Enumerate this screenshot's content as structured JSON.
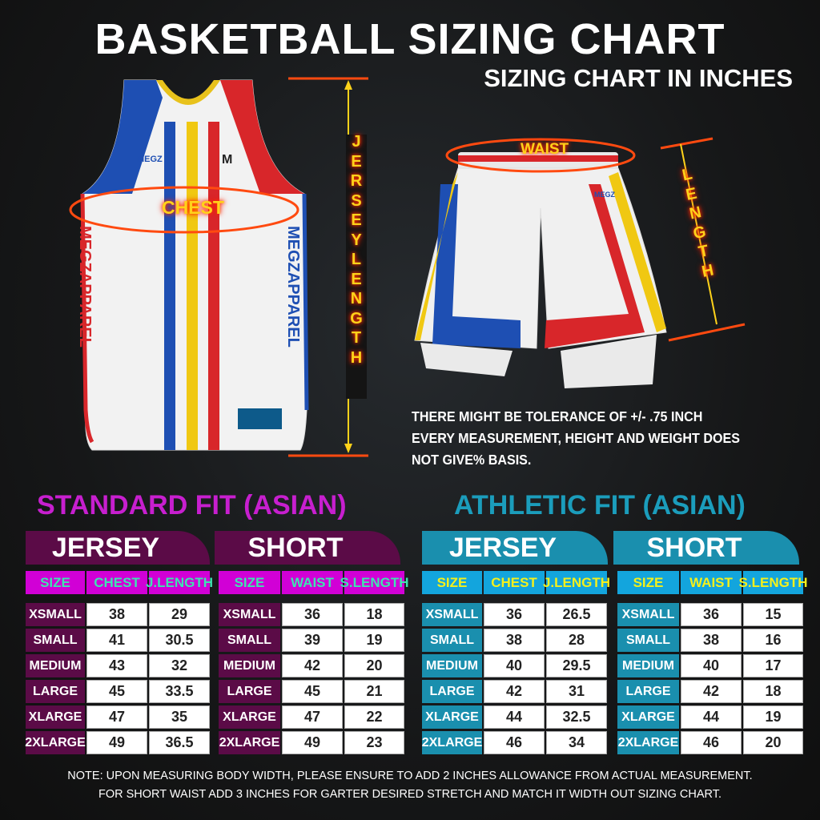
{
  "header": {
    "title": "BASKETBALL SIZING CHART",
    "subtitle": "SIZING CHART IN INCHES"
  },
  "brand": {
    "logo_text": "MEGZ",
    "jersey_side_text": "MEGZAPPAREL"
  },
  "jersey_graphic": {
    "chest_label": "CHEST",
    "length_label": "JERSEY LENGTH"
  },
  "shorts_graphic": {
    "waist_label": "WAIST",
    "length_label": "LENGTH"
  },
  "tolerance_note": [
    "THERE MIGHT BE TOLERANCE OF +/- .75 INCH",
    "EVERY MEASUREMENT, HEIGHT AND WEIGHT DOES",
    "NOT GIVE% BASIS."
  ],
  "colors": {
    "standard_accent": "#c71fcf",
    "standard_dark": "#5b0b47",
    "standard_header": "#d100d6",
    "standard_header_text": "#3fe3b2",
    "athletic_accent": "#1b9dbc",
    "athletic_dark": "#1a8fae",
    "athletic_header": "#13a5dd",
    "athletic_header_text": "#f4f01c",
    "measure_glow": "#ff3000"
  },
  "standard": {
    "title": "STANDARD FIT (ASIAN)",
    "jersey": {
      "label": "JERSEY",
      "columns": [
        "SIZE",
        "CHEST",
        "J.LENGTH"
      ],
      "rows": [
        [
          "XSMALL",
          "38",
          "29"
        ],
        [
          "SMALL",
          "41",
          "30.5"
        ],
        [
          "MEDIUM",
          "43",
          "32"
        ],
        [
          "LARGE",
          "45",
          "33.5"
        ],
        [
          "XLARGE",
          "47",
          "35"
        ],
        [
          "2XLARGE",
          "49",
          "36.5"
        ]
      ]
    },
    "short": {
      "label": "SHORT",
      "columns": [
        "SIZE",
        "WAIST",
        "S.LENGTH"
      ],
      "rows": [
        [
          "XSMALL",
          "36",
          "18"
        ],
        [
          "SMALL",
          "39",
          "19"
        ],
        [
          "MEDIUM",
          "42",
          "20"
        ],
        [
          "LARGE",
          "45",
          "21"
        ],
        [
          "XLARGE",
          "47",
          "22"
        ],
        [
          "2XLARGE",
          "49",
          "23"
        ]
      ]
    }
  },
  "athletic": {
    "title": "ATHLETIC FIT (ASIAN)",
    "jersey": {
      "label": "JERSEY",
      "columns": [
        "SIZE",
        "CHEST",
        "J.LENGTH"
      ],
      "rows": [
        [
          "XSMALL",
          "36",
          "26.5"
        ],
        [
          "SMALL",
          "38",
          "28"
        ],
        [
          "MEDIUM",
          "40",
          "29.5"
        ],
        [
          "LARGE",
          "42",
          "31"
        ],
        [
          "XLARGE",
          "44",
          "32.5"
        ],
        [
          "2XLARGE",
          "46",
          "34"
        ]
      ]
    },
    "short": {
      "label": "SHORT",
      "columns": [
        "SIZE",
        "WAIST",
        "S.LENGTH"
      ],
      "rows": [
        [
          "XSMALL",
          "36",
          "15"
        ],
        [
          "SMALL",
          "38",
          "16"
        ],
        [
          "MEDIUM",
          "40",
          "17"
        ],
        [
          "LARGE",
          "42",
          "18"
        ],
        [
          "XLARGE",
          "44",
          "19"
        ],
        [
          "2XLARGE",
          "46",
          "20"
        ]
      ]
    }
  },
  "footer": {
    "note": [
      "NOTE: UPON MEASURING BODY WIDTH, PLEASE ENSURE TO ADD 2 INCHES  ALLOWANCE FROM ACTUAL MEASUREMENT.",
      "FOR SHORT WAIST ADD 3 INCHES FOR GARTER DESIRED STRETCH AND MATCH IT WIDTH OUT SIZING CHART."
    ]
  }
}
